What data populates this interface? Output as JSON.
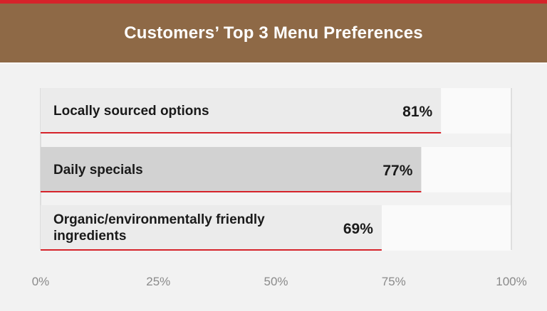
{
  "title": "Customers’ Top 3 Menu Preferences",
  "colors": {
    "header_bg": "#8e6946",
    "accent_red": "#d6232a",
    "bar_light": "#ebebeb",
    "bar_dark": "#d2d2d2",
    "track": "#fafafa",
    "page_bg": "#f2f2f2"
  },
  "chart_data": {
    "type": "bar",
    "orientation": "horizontal",
    "categories": [
      [
        "Locally sourced options"
      ],
      [
        "Daily specials"
      ],
      [
        "Organic/environmentally friendly",
        "ingredients"
      ]
    ],
    "values": [
      81,
      77,
      69
    ],
    "value_labels": [
      "81%",
      "77%",
      "69%"
    ],
    "xlim": [
      0,
      100
    ],
    "ticks": [
      "0%",
      "25%",
      "50%",
      "75%",
      "100%"
    ],
    "highlighted_index": 1
  }
}
